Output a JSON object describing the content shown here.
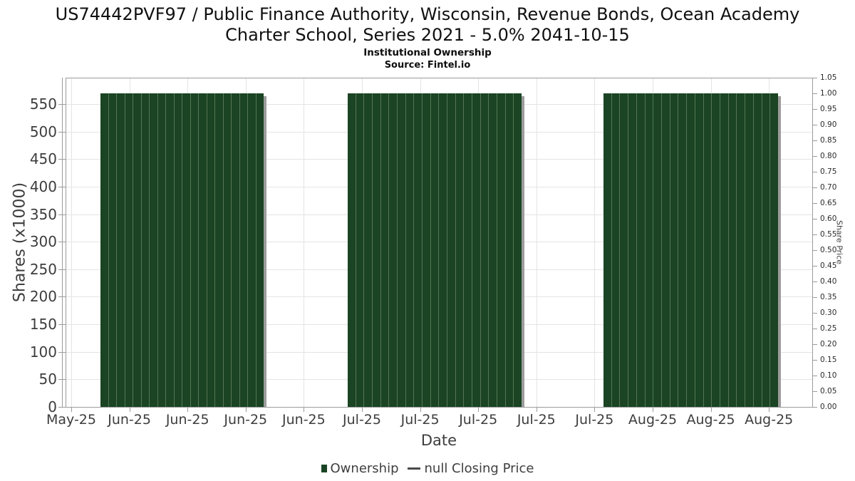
{
  "chart_data": {
    "type": "bar",
    "title": "US74442PVF97 / Public Finance Authority, Wisconsin, Revenue Bonds, Ocean Academy Charter School, Series 2021 - 5.0% 2041-10-15",
    "subtitle": "Institutional Ownership",
    "source": "Source: Fintel.io",
    "x_axis": {
      "label": "Date",
      "tick_labels": [
        "May-25",
        "Jun-25",
        "Jun-25",
        "Jun-25",
        "Jun-25",
        "Jul-25",
        "Jul-25",
        "Jul-25",
        "Jul-25",
        "Jul-25",
        "Aug-25",
        "Aug-25",
        "Aug-25"
      ]
    },
    "y_axis_left": {
      "label": "Shares (x1000)",
      "ticks": [
        0,
        50,
        100,
        150,
        200,
        250,
        300,
        350,
        400,
        450,
        500,
        550
      ],
      "range": [
        0,
        598
      ]
    },
    "y_axis_right": {
      "label": "Share Price",
      "ticks": [
        "0.00",
        "0.05",
        "0.10",
        "0.15",
        "0.20",
        "0.25",
        "0.30",
        "0.35",
        "0.40",
        "0.45",
        "0.50",
        "0.55",
        "0.60",
        "0.65",
        "0.70",
        "0.75",
        "0.80",
        "0.85",
        "0.90",
        "0.95",
        "1.00",
        "1.05"
      ],
      "range": [
        0,
        1.05
      ]
    },
    "grid": true,
    "legend_position": "bottom",
    "series": [
      {
        "name": "Ownership",
        "type": "bar",
        "color": "#1a4423",
        "value_k_shares": 569,
        "segments": [
          {
            "bar_count": 20,
            "value": 569,
            "x_start_frac": 0.0468,
            "x_end_frac": 0.2657
          },
          {
            "bar_count": 21,
            "value": 569,
            "x_start_frac": 0.3779,
            "x_end_frac": 0.6107
          },
          {
            "bar_count": 21,
            "value": 569,
            "x_start_frac": 0.7204,
            "x_end_frac": 0.9542
          }
        ]
      },
      {
        "name": "null Closing Price",
        "type": "line",
        "color": "#4a4a4a",
        "values": []
      }
    ],
    "legend": {
      "items": [
        {
          "label": "Ownership",
          "marker": "square",
          "color": "#1a4423"
        },
        {
          "label": "null Closing Price",
          "marker": "line",
          "color": "#4a4a4a"
        }
      ]
    }
  }
}
